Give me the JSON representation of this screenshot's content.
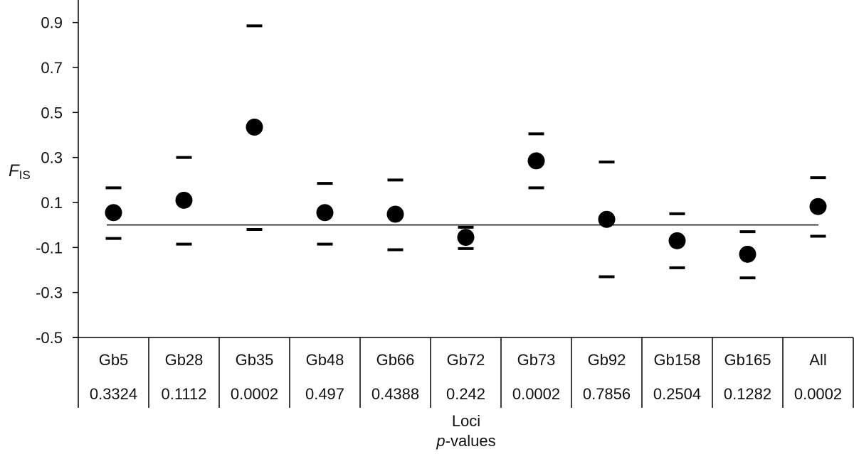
{
  "chart_data": {
    "type": "scatter",
    "title": "",
    "ylabel_main": "F",
    "ylabel_sub": "IS",
    "xlabel_line1": "Loci",
    "xlabel_line2_italic": "p",
    "xlabel_line2_rest": "-values",
    "ylim": [
      -0.5,
      1.0
    ],
    "yticks": [
      "-0.5",
      "-0.3",
      "-0.1",
      "0.1",
      "0.3",
      "0.5",
      "0.7",
      "0.9"
    ],
    "ytick_values": [
      -0.5,
      -0.3,
      -0.1,
      0.1,
      0.3,
      0.5,
      0.7,
      0.9
    ],
    "reference_line": 0,
    "categories": [
      "Gb5",
      "Gb28",
      "Gb35",
      "Gb48",
      "Gb66",
      "Gb72",
      "Gb73",
      "Gb92",
      "Gb158",
      "Gb165",
      "All"
    ],
    "p_values": [
      "0.3324",
      "0.1112",
      "0.0002",
      "0.497",
      "0.4388",
      "0.242",
      "0.0002",
      "0.7856",
      "0.2504",
      "0.1282",
      "0.0002"
    ],
    "values": [
      0.055,
      0.11,
      0.435,
      0.055,
      0.048,
      -0.055,
      0.285,
      0.025,
      -0.07,
      -0.13,
      0.082
    ],
    "upper": [
      0.165,
      0.3,
      0.885,
      0.185,
      0.2,
      -0.01,
      0.405,
      0.28,
      0.05,
      -0.03,
      0.21
    ],
    "lower": [
      -0.06,
      -0.085,
      -0.02,
      -0.085,
      -0.11,
      -0.105,
      0.165,
      -0.23,
      -0.19,
      -0.235,
      -0.05
    ],
    "grid": false,
    "colors": {
      "marker": "#000000",
      "axis": "#000000"
    }
  }
}
